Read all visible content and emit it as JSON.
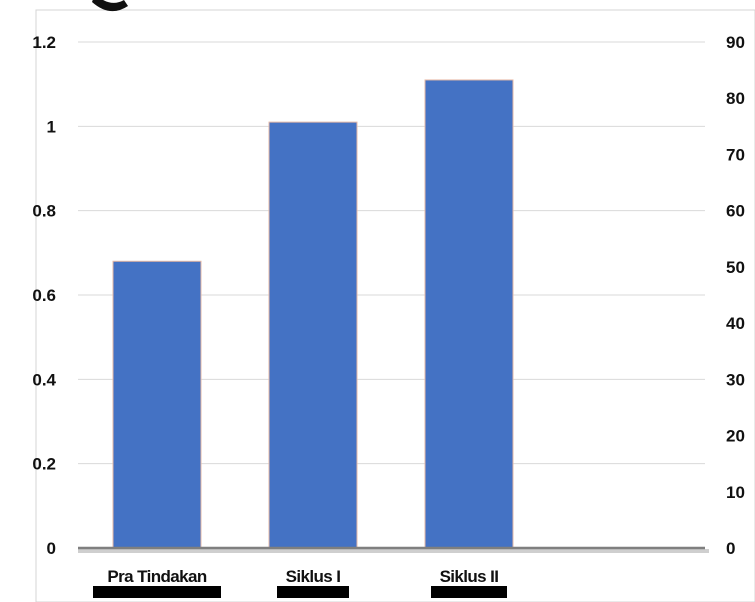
{
  "chart_data": {
    "type": "bar",
    "title": "",
    "xlabel": "",
    "ylabel": "",
    "categories": [
      "Pra Tindakan",
      "Siklus I",
      "Siklus II"
    ],
    "series": [
      {
        "values": [
          0.68,
          1.01,
          1.11
        ]
      }
    ],
    "ylim": [
      0,
      1.2
    ],
    "yticks": [
      "0",
      "0.2",
      "0.4",
      "0.6",
      "0.8",
      "1",
      "1.2"
    ],
    "y2lim": [
      0,
      90
    ],
    "y2ticks": [
      "0",
      "10",
      "20",
      "30",
      "40",
      "50",
      "60",
      "70",
      "80",
      "90"
    ],
    "grid": true,
    "bar_color": "#4472C4",
    "gridline_color": "#D9D9D9"
  }
}
